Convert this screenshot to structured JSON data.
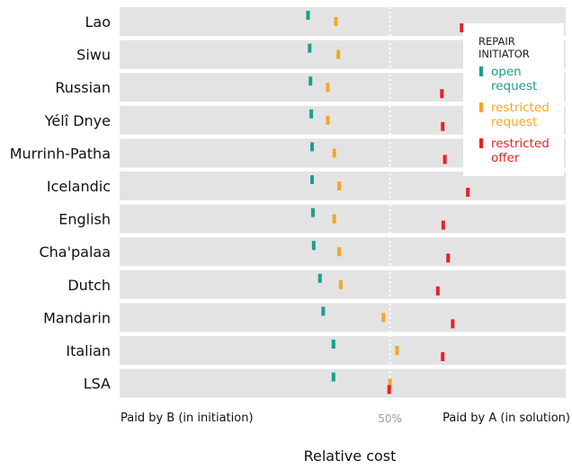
{
  "chart_data": {
    "type": "scatter",
    "categories": [
      "Lao",
      "Siwu",
      "Russian",
      "Yélî Dnye",
      "Murrinh-Patha",
      "Icelandic",
      "English",
      "Cha'palaa",
      "Dutch",
      "Mandarin",
      "Italian",
      "LSA"
    ],
    "series": [
      {
        "name": "open request",
        "color": "#1a9e8f",
        "values": [
          19.7,
          20.3,
          20.6,
          20.9,
          21.2,
          21.2,
          21.5,
          21.8,
          24.1,
          25.3,
          29.1,
          29.1
        ]
      },
      {
        "name": "restricted request",
        "color": "#f5a623",
        "values": [
          30.0,
          30.9,
          27.0,
          27.0,
          29.4,
          31.2,
          29.4,
          31.2,
          31.8,
          47.6,
          52.6,
          50.0
        ]
      },
      {
        "name": "restricted offer",
        "color": "#e8202a",
        "values": [
          76.5,
          78.5,
          69.2,
          69.5,
          70.3,
          78.8,
          69.7,
          71.5,
          67.7,
          73.2,
          69.5,
          49.7
        ]
      }
    ],
    "xlim": [
      -50,
      115
    ],
    "reference_line": {
      "x": 50,
      "label": "50%"
    },
    "x_left_label": "Paid by B (in initiation)",
    "x_right_label": "Paid by A (in solution)",
    "xlabel": "Relative cost",
    "legend": {
      "title": "REPAIR INITIATOR",
      "placement": "top-right"
    },
    "colors": {
      "band": "#e3e3e3",
      "background": "#ffffff"
    }
  }
}
